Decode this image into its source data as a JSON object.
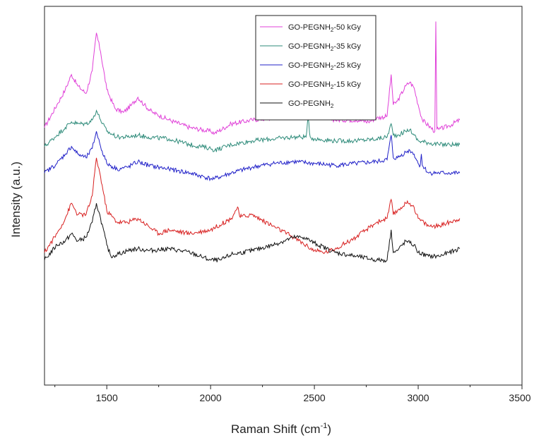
{
  "chart_data": {
    "type": "line",
    "title": "",
    "xlabel": "Raman Shift (cm",
    "xlabel_superscript": "-1",
    "xlabel_suffix": ")",
    "ylabel": "Intensity (a.u.)",
    "xlim": [
      1200,
      3500
    ],
    "x_ticks": [
      1500,
      2000,
      2500,
      3000,
      3500
    ],
    "x_tick_labels": [
      "1500",
      "2000",
      "2500",
      "3000",
      "3500"
    ],
    "y_ticks_shown": false,
    "grid": false,
    "legend_position": "top-center",
    "legend": [
      {
        "base": "GO-PEGNH",
        "sub": "2",
        "suffix": "-50 kGy",
        "color": "#e040d8"
      },
      {
        "base": "GO-PEGNH",
        "sub": "2",
        "suffix": "-35 kGy",
        "color": "#2e8b7a"
      },
      {
        "base": "GO-PEGNH",
        "sub": "2",
        "suffix": "-25 kGy",
        "color": "#2020c8"
      },
      {
        "base": "GO-PEGNH",
        "sub": "2",
        "suffix": "-15 kGy",
        "color": "#d82020"
      },
      {
        "base": "GO-PEGNH",
        "sub": "2",
        "suffix": "",
        "color": "#111111"
      }
    ],
    "series": [
      {
        "name": "GO-PEGNH2-50 kGy",
        "color": "#e040d8",
        "x": [
          1200,
          1260,
          1300,
          1330,
          1360,
          1400,
          1430,
          1450,
          1470,
          1500,
          1540,
          1580,
          1620,
          1650,
          1680,
          1720,
          1800,
          1900,
          2000,
          2020,
          2100,
          2200,
          2300,
          2400,
          2460,
          2500,
          2600,
          2700,
          2760,
          2800,
          2850,
          2870,
          2880,
          2900,
          2940,
          2960,
          2980,
          3000,
          3020,
          3050,
          3080,
          3085,
          3090,
          3100,
          3150,
          3200
        ],
        "y": [
          0.68,
          0.74,
          0.78,
          0.82,
          0.79,
          0.77,
          0.83,
          0.93,
          0.88,
          0.78,
          0.73,
          0.72,
          0.74,
          0.76,
          0.74,
          0.72,
          0.7,
          0.68,
          0.67,
          0.665,
          0.69,
          0.7,
          0.705,
          0.72,
          0.725,
          0.715,
          0.7,
          0.7,
          0.695,
          0.705,
          0.71,
          0.82,
          0.74,
          0.75,
          0.79,
          0.8,
          0.785,
          0.74,
          0.7,
          0.685,
          0.67,
          0.96,
          0.675,
          0.675,
          0.685,
          0.7
        ]
      },
      {
        "name": "GO-PEGNH2-35 kGy",
        "color": "#2e8b7a",
        "x": [
          1200,
          1260,
          1300,
          1330,
          1360,
          1400,
          1430,
          1450,
          1470,
          1500,
          1550,
          1600,
          1650,
          1700,
          1800,
          1900,
          2000,
          2020,
          2100,
          2200,
          2300,
          2400,
          2460,
          2470,
          2480,
          2500,
          2600,
          2700,
          2800,
          2850,
          2870,
          2880,
          2900,
          2940,
          2960,
          2980,
          3000,
          3050,
          3100,
          3150,
          3200
        ],
        "y": [
          0.63,
          0.66,
          0.68,
          0.695,
          0.69,
          0.69,
          0.7,
          0.725,
          0.7,
          0.67,
          0.655,
          0.655,
          0.66,
          0.655,
          0.65,
          0.635,
          0.625,
          0.62,
          0.635,
          0.645,
          0.65,
          0.655,
          0.655,
          0.705,
          0.655,
          0.65,
          0.645,
          0.645,
          0.65,
          0.655,
          0.69,
          0.66,
          0.66,
          0.67,
          0.675,
          0.66,
          0.645,
          0.64,
          0.635,
          0.635,
          0.635
        ]
      },
      {
        "name": "GO-PEGNH2-25 kGy",
        "color": "#2020c8",
        "x": [
          1200,
          1260,
          1300,
          1330,
          1360,
          1400,
          1430,
          1450,
          1470,
          1500,
          1550,
          1600,
          1650,
          1700,
          1800,
          1900,
          2000,
          2020,
          2100,
          2200,
          2300,
          2400,
          2500,
          2600,
          2700,
          2800,
          2850,
          2870,
          2880,
          2900,
          2940,
          2960,
          2980,
          3000,
          3010,
          3015,
          3020,
          3050,
          3100,
          3150,
          3200
        ],
        "y": [
          0.56,
          0.585,
          0.61,
          0.63,
          0.61,
          0.6,
          0.625,
          0.67,
          0.63,
          0.585,
          0.57,
          0.575,
          0.59,
          0.58,
          0.57,
          0.56,
          0.545,
          0.545,
          0.56,
          0.575,
          0.585,
          0.59,
          0.585,
          0.58,
          0.585,
          0.59,
          0.595,
          0.66,
          0.6,
          0.6,
          0.615,
          0.62,
          0.61,
          0.585,
          0.58,
          0.61,
          0.58,
          0.56,
          0.56,
          0.56,
          0.56
        ]
      },
      {
        "name": "GO-PEGNH2-15 kGy",
        "color": "#d82020",
        "x": [
          1200,
          1260,
          1300,
          1330,
          1360,
          1400,
          1430,
          1450,
          1470,
          1500,
          1550,
          1600,
          1650,
          1700,
          1750,
          1800,
          1900,
          2000,
          2100,
          2130,
          2140,
          2150,
          2200,
          2300,
          2400,
          2500,
          2550,
          2600,
          2700,
          2800,
          2850,
          2870,
          2880,
          2900,
          2940,
          2960,
          2980,
          3000,
          3050,
          3100,
          3150,
          3200
        ],
        "y": [
          0.35,
          0.4,
          0.44,
          0.48,
          0.45,
          0.45,
          0.5,
          0.6,
          0.55,
          0.46,
          0.43,
          0.43,
          0.44,
          0.42,
          0.4,
          0.41,
          0.4,
          0.41,
          0.44,
          0.47,
          0.445,
          0.445,
          0.45,
          0.42,
          0.39,
          0.355,
          0.35,
          0.36,
          0.39,
          0.43,
          0.44,
          0.49,
          0.45,
          0.46,
          0.48,
          0.48,
          0.47,
          0.44,
          0.42,
          0.42,
          0.43,
          0.44
        ]
      },
      {
        "name": "GO-PEGNH2",
        "color": "#111111",
        "x": [
          1200,
          1260,
          1300,
          1330,
          1360,
          1400,
          1430,
          1450,
          1470,
          1500,
          1520,
          1550,
          1600,
          1650,
          1700,
          1800,
          1900,
          2000,
          2050,
          2100,
          2200,
          2300,
          2400,
          2450,
          2500,
          2600,
          2700,
          2800,
          2850,
          2870,
          2880,
          2900,
          2940,
          2960,
          2980,
          3000,
          3050,
          3100,
          3150,
          3200
        ],
        "y": [
          0.33,
          0.37,
          0.38,
          0.4,
          0.38,
          0.39,
          0.43,
          0.48,
          0.44,
          0.37,
          0.34,
          0.345,
          0.355,
          0.36,
          0.355,
          0.36,
          0.35,
          0.33,
          0.33,
          0.345,
          0.355,
          0.37,
          0.39,
          0.39,
          0.375,
          0.35,
          0.34,
          0.33,
          0.33,
          0.41,
          0.35,
          0.355,
          0.38,
          0.375,
          0.37,
          0.35,
          0.34,
          0.34,
          0.35,
          0.36
        ]
      }
    ]
  }
}
